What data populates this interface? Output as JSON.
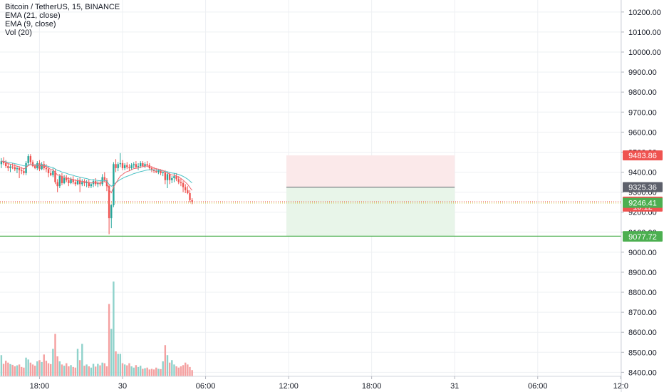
{
  "legend": {
    "title": "Bitcoin / TetherUS, 15, BINANCE",
    "ema21": "EMA (21, close)",
    "ema9": "EMA (9, close)",
    "vol": "Vol (20)"
  },
  "colors": {
    "up": "#26a69a",
    "down": "#ef5350",
    "vol_up": "#8fd2cb",
    "vol_down": "#f4a0a0",
    "ema21": "#4fc3c6",
    "ema9": "#ef6b73",
    "grid": "#eef0f3",
    "axis_text": "#131722",
    "stop_zone": "#fbe9ea",
    "target_zone": "#e8f5e9",
    "support_line": "#4caf50"
  },
  "chart_data": {
    "type": "candlestick",
    "symbol": "Bitcoin / TetherUS",
    "interval": "15",
    "exchange": "BINANCE",
    "y_axis": {
      "ticks": [
        "10200.00",
        "10100.00",
        "10000.00",
        "9900.00",
        "9800.00",
        "9700.00",
        "9600.00",
        "9500.00",
        "9400.00",
        "9300.00",
        "9200.00",
        "9100.00",
        "9000.00",
        "8900.00",
        "8800.00",
        "8700.00",
        "8600.00",
        "8500.00",
        "8400.00"
      ],
      "range": [
        8380,
        10260
      ]
    },
    "x_axis": {
      "labels": [
        {
          "text": "18:00",
          "slot": -37
        },
        {
          "text": "30",
          "slot": 0
        },
        {
          "text": "06:00",
          "slot": 37
        },
        {
          "text": "12:00",
          "slot": 74
        },
        {
          "text": "18:00",
          "slot": 111
        },
        {
          "text": "31",
          "slot": 148
        },
        {
          "text": "06:00",
          "slot": 185
        },
        {
          "text": "12:0",
          "slot": 222
        }
      ]
    },
    "price_labels": [
      {
        "text": "9483.86",
        "price": 9483.86,
        "color": "#ef5350"
      },
      {
        "text": "9325.36",
        "price": 9325.36,
        "color": "#5d606b"
      },
      {
        "text": "9252.92",
        "price": 9252.92,
        "color": "#ef5350"
      },
      {
        "text": "13:12",
        "price": 9228,
        "color": "#ef5350"
      },
      {
        "text": "9246.41",
        "price": 9246.41,
        "color": "#4caf50"
      },
      {
        "text": "9080.20",
        "price": 9080.2,
        "color": "#1b9e20"
      },
      {
        "text": "9077.72",
        "price": 9077.72,
        "color": "#4caf50"
      }
    ],
    "position": {
      "entry": 9325.36,
      "stop": 9483.86,
      "target": 9080.2,
      "start_slot": 73,
      "end_slot": 148
    },
    "current_price": 9252.92,
    "support_line": 9080.2,
    "candles": [
      {
        "o": 9440,
        "h": 9470,
        "l": 9420,
        "c": 9455,
        "v": 170
      },
      {
        "o": 9455,
        "h": 9475,
        "l": 9435,
        "c": 9445,
        "v": 100
      },
      {
        "o": 9445,
        "h": 9460,
        "l": 9420,
        "c": 9430,
        "v": 125
      },
      {
        "o": 9430,
        "h": 9445,
        "l": 9405,
        "c": 9420,
        "v": 110
      },
      {
        "o": 9420,
        "h": 9440,
        "l": 9400,
        "c": 9428,
        "v": 98
      },
      {
        "o": 9428,
        "h": 9445,
        "l": 9415,
        "c": 9425,
        "v": 92
      },
      {
        "o": 9425,
        "h": 9440,
        "l": 9405,
        "c": 9415,
        "v": 80
      },
      {
        "o": 9415,
        "h": 9430,
        "l": 9395,
        "c": 9420,
        "v": 88
      },
      {
        "o": 9420,
        "h": 9430,
        "l": 9370,
        "c": 9410,
        "v": 95
      },
      {
        "o": 9410,
        "h": 9425,
        "l": 9390,
        "c": 9405,
        "v": 75
      },
      {
        "o": 9405,
        "h": 9420,
        "l": 9385,
        "c": 9395,
        "v": 70
      },
      {
        "o": 9395,
        "h": 9455,
        "l": 9385,
        "c": 9445,
        "v": 150
      },
      {
        "o": 9445,
        "h": 9490,
        "l": 9430,
        "c": 9480,
        "v": 135
      },
      {
        "o": 9480,
        "h": 9490,
        "l": 9440,
        "c": 9450,
        "v": 110
      },
      {
        "o": 9450,
        "h": 9460,
        "l": 9425,
        "c": 9430,
        "v": 95
      },
      {
        "o": 9430,
        "h": 9440,
        "l": 9415,
        "c": 9420,
        "v": 85
      },
      {
        "o": 9420,
        "h": 9455,
        "l": 9410,
        "c": 9445,
        "v": 120
      },
      {
        "o": 9445,
        "h": 9460,
        "l": 9405,
        "c": 9415,
        "v": 130
      },
      {
        "o": 9415,
        "h": 9450,
        "l": 9410,
        "c": 9440,
        "v": 115
      },
      {
        "o": 9440,
        "h": 9455,
        "l": 9410,
        "c": 9420,
        "v": 175
      },
      {
        "o": 9420,
        "h": 9440,
        "l": 9400,
        "c": 9415,
        "v": 125
      },
      {
        "o": 9415,
        "h": 9425,
        "l": 9375,
        "c": 9395,
        "v": 105
      },
      {
        "o": 9395,
        "h": 9410,
        "l": 9380,
        "c": 9385,
        "v": 98
      },
      {
        "o": 9385,
        "h": 9420,
        "l": 9375,
        "c": 9405,
        "v": 220
      },
      {
        "o": 9405,
        "h": 9415,
        "l": 9340,
        "c": 9350,
        "v": 340
      },
      {
        "o": 9350,
        "h": 9365,
        "l": 9300,
        "c": 9330,
        "v": 160
      },
      {
        "o": 9330,
        "h": 9390,
        "l": 9320,
        "c": 9380,
        "v": 120
      },
      {
        "o": 9380,
        "h": 9395,
        "l": 9335,
        "c": 9345,
        "v": 95
      },
      {
        "o": 9345,
        "h": 9385,
        "l": 9340,
        "c": 9370,
        "v": 85
      },
      {
        "o": 9370,
        "h": 9385,
        "l": 9350,
        "c": 9360,
        "v": 105
      },
      {
        "o": 9360,
        "h": 9375,
        "l": 9330,
        "c": 9345,
        "v": 80
      },
      {
        "o": 9345,
        "h": 9375,
        "l": 9340,
        "c": 9365,
        "v": 90
      },
      {
        "o": 9365,
        "h": 9380,
        "l": 9340,
        "c": 9350,
        "v": 75
      },
      {
        "o": 9350,
        "h": 9365,
        "l": 9330,
        "c": 9340,
        "v": 70
      },
      {
        "o": 9340,
        "h": 9370,
        "l": 9335,
        "c": 9360,
        "v": 220
      },
      {
        "o": 9360,
        "h": 9375,
        "l": 9300,
        "c": 9340,
        "v": 130
      },
      {
        "o": 9340,
        "h": 9365,
        "l": 9330,
        "c": 9350,
        "v": 260
      },
      {
        "o": 9350,
        "h": 9365,
        "l": 9330,
        "c": 9345,
        "v": 85
      },
      {
        "o": 9345,
        "h": 9360,
        "l": 9325,
        "c": 9350,
        "v": 95
      },
      {
        "o": 9350,
        "h": 9365,
        "l": 9320,
        "c": 9330,
        "v": 80
      },
      {
        "o": 9330,
        "h": 9350,
        "l": 9320,
        "c": 9340,
        "v": 70
      },
      {
        "o": 9340,
        "h": 9365,
        "l": 9325,
        "c": 9355,
        "v": 100
      },
      {
        "o": 9355,
        "h": 9370,
        "l": 9330,
        "c": 9340,
        "v": 78
      },
      {
        "o": 9340,
        "h": 9355,
        "l": 9325,
        "c": 9345,
        "v": 100
      },
      {
        "o": 9345,
        "h": 9360,
        "l": 9330,
        "c": 9340,
        "v": 88
      },
      {
        "o": 9340,
        "h": 9390,
        "l": 9330,
        "c": 9375,
        "v": 110
      },
      {
        "o": 9375,
        "h": 9400,
        "l": 9350,
        "c": 9360,
        "v": 105
      },
      {
        "o": 9360,
        "h": 9370,
        "l": 9305,
        "c": 9330,
        "v": 80
      },
      {
        "o": 9330,
        "h": 9340,
        "l": 9090,
        "c": 9170,
        "v": 580
      },
      {
        "o": 9170,
        "h": 9240,
        "l": 9120,
        "c": 9235,
        "v": 380
      },
      {
        "o": 9235,
        "h": 9450,
        "l": 9225,
        "c": 9440,
        "v": 760
      },
      {
        "o": 9440,
        "h": 9465,
        "l": 9400,
        "c": 9420,
        "v": 200
      },
      {
        "o": 9420,
        "h": 9450,
        "l": 9405,
        "c": 9440,
        "v": 180
      },
      {
        "o": 9440,
        "h": 9495,
        "l": 9425,
        "c": 9445,
        "v": 180
      },
      {
        "o": 9445,
        "h": 9460,
        "l": 9410,
        "c": 9420,
        "v": 105
      },
      {
        "o": 9420,
        "h": 9445,
        "l": 9410,
        "c": 9435,
        "v": 95
      },
      {
        "o": 9435,
        "h": 9450,
        "l": 9415,
        "c": 9425,
        "v": 88
      },
      {
        "o": 9425,
        "h": 9440,
        "l": 9405,
        "c": 9420,
        "v": 105
      },
      {
        "o": 9420,
        "h": 9445,
        "l": 9410,
        "c": 9435,
        "v": 80
      },
      {
        "o": 9435,
        "h": 9450,
        "l": 9420,
        "c": 9440,
        "v": 70
      },
      {
        "o": 9440,
        "h": 9455,
        "l": 9420,
        "c": 9425,
        "v": 90
      },
      {
        "o": 9425,
        "h": 9445,
        "l": 9410,
        "c": 9430,
        "v": 75
      },
      {
        "o": 9430,
        "h": 9455,
        "l": 9420,
        "c": 9445,
        "v": 85
      },
      {
        "o": 9445,
        "h": 9455,
        "l": 9425,
        "c": 9430,
        "v": 60
      },
      {
        "o": 9430,
        "h": 9450,
        "l": 9420,
        "c": 9440,
        "v": 65
      },
      {
        "o": 9440,
        "h": 9455,
        "l": 9425,
        "c": 9435,
        "v": 70
      },
      {
        "o": 9435,
        "h": 9445,
        "l": 9410,
        "c": 9420,
        "v": 55
      },
      {
        "o": 9420,
        "h": 9430,
        "l": 9400,
        "c": 9410,
        "v": 60
      },
      {
        "o": 9410,
        "h": 9425,
        "l": 9395,
        "c": 9405,
        "v": 55
      },
      {
        "o": 9405,
        "h": 9420,
        "l": 9395,
        "c": 9400,
        "v": 70
      },
      {
        "o": 9400,
        "h": 9415,
        "l": 9390,
        "c": 9408,
        "v": 60
      },
      {
        "o": 9408,
        "h": 9415,
        "l": 9385,
        "c": 9395,
        "v": 58
      },
      {
        "o": 9395,
        "h": 9405,
        "l": 9380,
        "c": 9400,
        "v": 120
      },
      {
        "o": 9400,
        "h": 9410,
        "l": 9340,
        "c": 9360,
        "v": 250
      },
      {
        "o": 9360,
        "h": 9400,
        "l": 9320,
        "c": 9390,
        "v": 170
      },
      {
        "o": 9390,
        "h": 9400,
        "l": 9340,
        "c": 9360,
        "v": 110
      },
      {
        "o": 9360,
        "h": 9380,
        "l": 9345,
        "c": 9370,
        "v": 130
      },
      {
        "o": 9370,
        "h": 9395,
        "l": 9350,
        "c": 9380,
        "v": 95
      },
      {
        "o": 9380,
        "h": 9395,
        "l": 9355,
        "c": 9365,
        "v": 80
      },
      {
        "o": 9365,
        "h": 9380,
        "l": 9340,
        "c": 9350,
        "v": 70
      },
      {
        "o": 9350,
        "h": 9370,
        "l": 9330,
        "c": 9345,
        "v": 80
      },
      {
        "o": 9345,
        "h": 9355,
        "l": 9300,
        "c": 9325,
        "v": 90
      },
      {
        "o": 9325,
        "h": 9340,
        "l": 9295,
        "c": 9310,
        "v": 110
      },
      {
        "o": 9310,
        "h": 9330,
        "l": 9290,
        "c": 9295,
        "v": 95
      },
      {
        "o": 9295,
        "h": 9310,
        "l": 9250,
        "c": 9260,
        "v": 75
      },
      {
        "o": 9260,
        "h": 9270,
        "l": 9240,
        "c": 9252.92,
        "v": 50
      }
    ]
  }
}
